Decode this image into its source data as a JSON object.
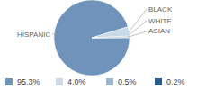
{
  "chart_data": {
    "type": "pie",
    "categories": [
      "HISPANIC",
      "BLACK",
      "WHITE",
      "ASIAN"
    ],
    "values": [
      95.3,
      4.0,
      0.5,
      0.2
    ],
    "value_labels": [
      "95.3%",
      "4.0%",
      "0.5%",
      "0.2%"
    ],
    "colors": [
      "#6f93bb",
      "#c9d9e8",
      "#9fb5cc",
      "#2b5c8c"
    ]
  }
}
